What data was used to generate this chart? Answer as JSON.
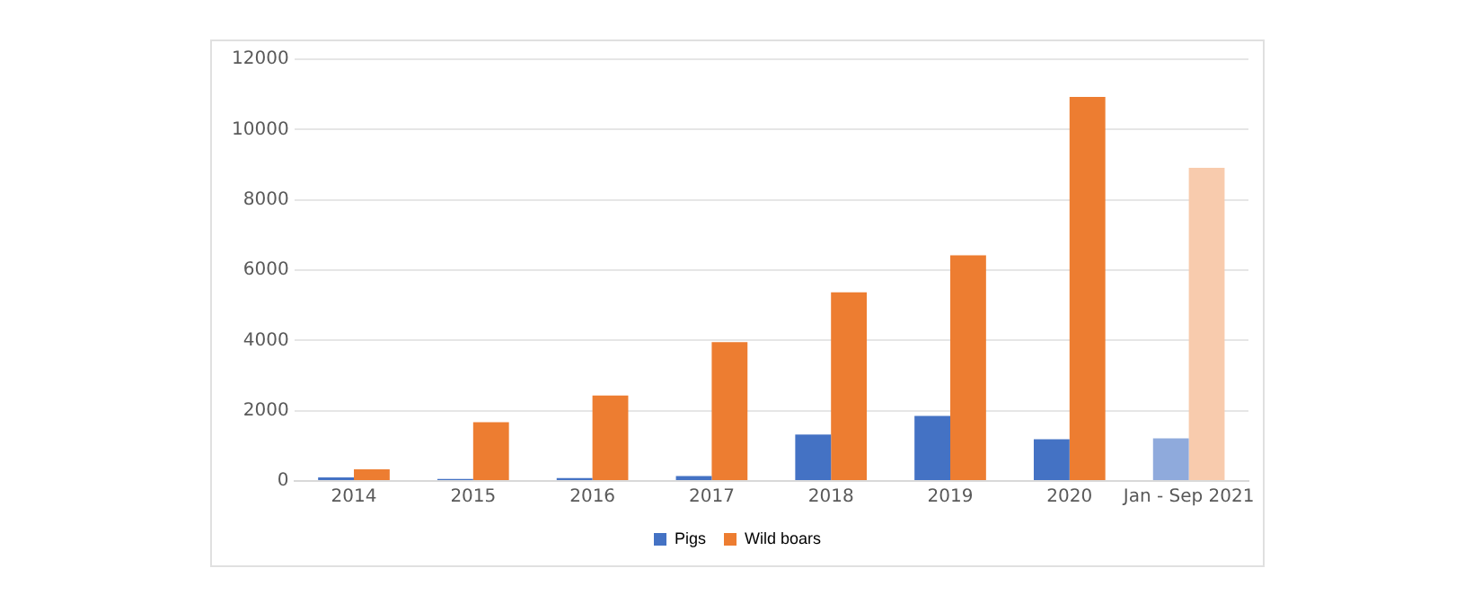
{
  "chart_data": {
    "type": "bar",
    "categories": [
      "2014",
      "2015",
      "2016",
      "2017",
      "2018",
      "2019",
      "2020",
      "Jan - Sep 2021"
    ],
    "series": [
      {
        "name": "Pigs",
        "color": "#4472c4",
        "colors": [
          "#4472c4",
          "#4472c4",
          "#4472c4",
          "#4472c4",
          "#4472c4",
          "#4472c4",
          "#4472c4",
          "#8faadc"
        ],
        "values": [
          100,
          60,
          80,
          140,
          1320,
          1850,
          1190,
          1210
        ]
      },
      {
        "name": "Wild boars",
        "color": "#ed7d31",
        "colors": [
          "#ed7d31",
          "#ed7d31",
          "#ed7d31",
          "#ed7d31",
          "#ed7d31",
          "#ed7d31",
          "#ed7d31",
          "#f8cbad"
        ],
        "values": [
          330,
          1670,
          2430,
          3950,
          5370,
          6420,
          10930,
          8910
        ]
      }
    ],
    "ylim": [
      0,
      12000
    ],
    "yticks": [
      0,
      2000,
      4000,
      6000,
      8000,
      10000,
      12000
    ],
    "grid": "y",
    "legend": "bottom"
  }
}
